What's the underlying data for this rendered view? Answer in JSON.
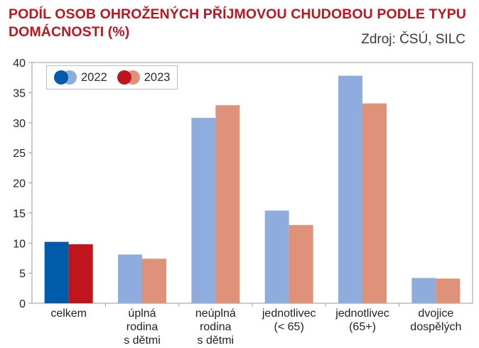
{
  "title_line1": "PODÍL OSOB OHROŽENÝCH PŘÍJMOVOU CHUDOBOU PODLE TYPU",
  "title_line2": "DOMÁCNOSTI (%)",
  "source": "Zdroj: ČSÚ, SILC",
  "colors": {
    "title": "#c0141e",
    "first_2022": "#005bab",
    "first_2023": "#c0141e",
    "other_2022": "#8eadde",
    "other_2023": "#e0917a"
  },
  "chart_data": {
    "type": "bar",
    "title": "PODÍL OSOB OHROŽENÝCH PŘÍJMOVOU CHUDOBOU PODLE TYPU DOMÁCNOSTI (%)",
    "categories": [
      [
        "celkem"
      ],
      [
        "úplná",
        "rodina",
        "s dětmi"
      ],
      [
        "neúplná",
        "rodina",
        "s dětmi"
      ],
      [
        "jednotlivec",
        "(< 65)"
      ],
      [
        "jednotlivec",
        "(65+)"
      ],
      [
        "dvojice",
        "dospělých"
      ]
    ],
    "series": [
      {
        "name": "2022",
        "values": [
          10.2,
          8.1,
          30.8,
          15.4,
          37.8,
          4.2
        ]
      },
      {
        "name": "2023",
        "values": [
          9.8,
          7.4,
          32.9,
          13.0,
          33.2,
          4.1
        ]
      }
    ],
    "ylim": [
      0,
      40
    ],
    "yticks": [
      0,
      5,
      10,
      15,
      20,
      25,
      30,
      35,
      40
    ],
    "xlabel": "",
    "ylabel": "",
    "legend": "top-left"
  }
}
